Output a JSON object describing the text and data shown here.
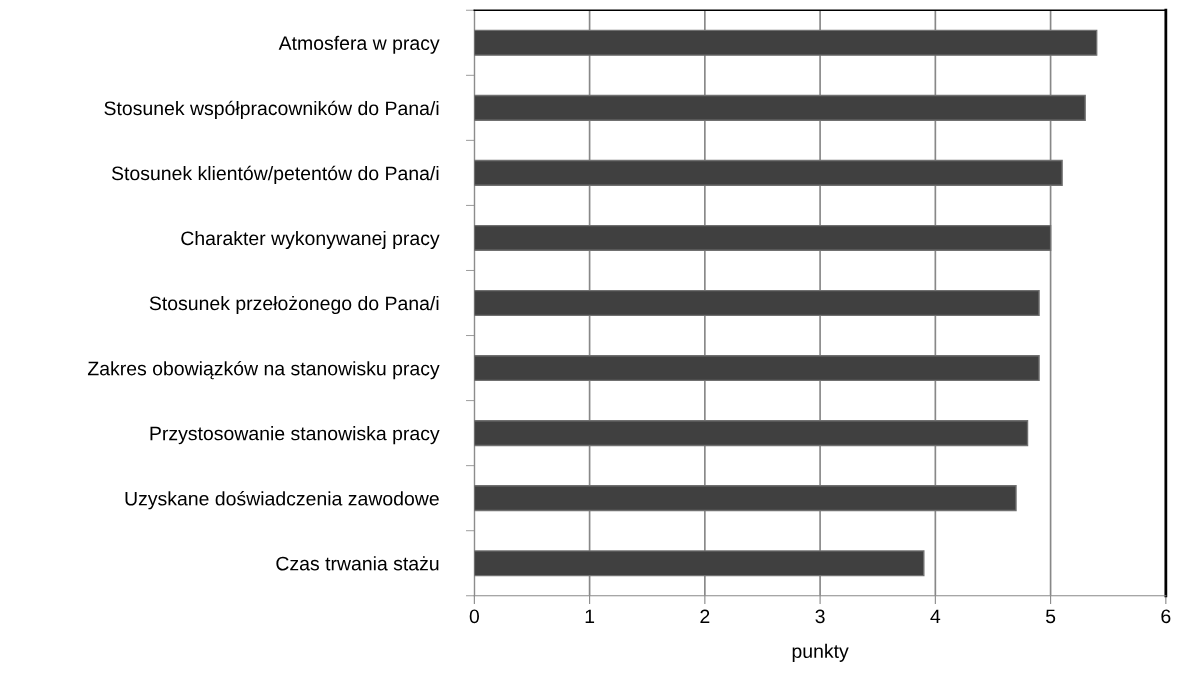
{
  "chart_data": {
    "type": "bar",
    "orientation": "horizontal",
    "categories": [
      "Atmosfera w pracy",
      "Stosunek współpracowników do Pana/i",
      "Stosunek klientów/petentów do Pana/i",
      "Charakter wykonywanej pracy",
      "Stosunek przełożonego do Pana/i",
      "Zakres obowiązków na stanowisku pracy",
      "Przystosowanie stanowiska pracy",
      "Uzyskane doświadczenia zawodowe",
      "Czas trwania stażu"
    ],
    "values": [
      5.4,
      5.3,
      5.1,
      5.0,
      4.9,
      4.9,
      4.8,
      4.7,
      3.9
    ],
    "color": "#404040",
    "xlabel": "punkty",
    "xlim": [
      0,
      6
    ],
    "xticks": [
      0,
      1,
      2,
      3,
      4,
      5,
      6
    ],
    "grid": "x",
    "legend": false
  }
}
